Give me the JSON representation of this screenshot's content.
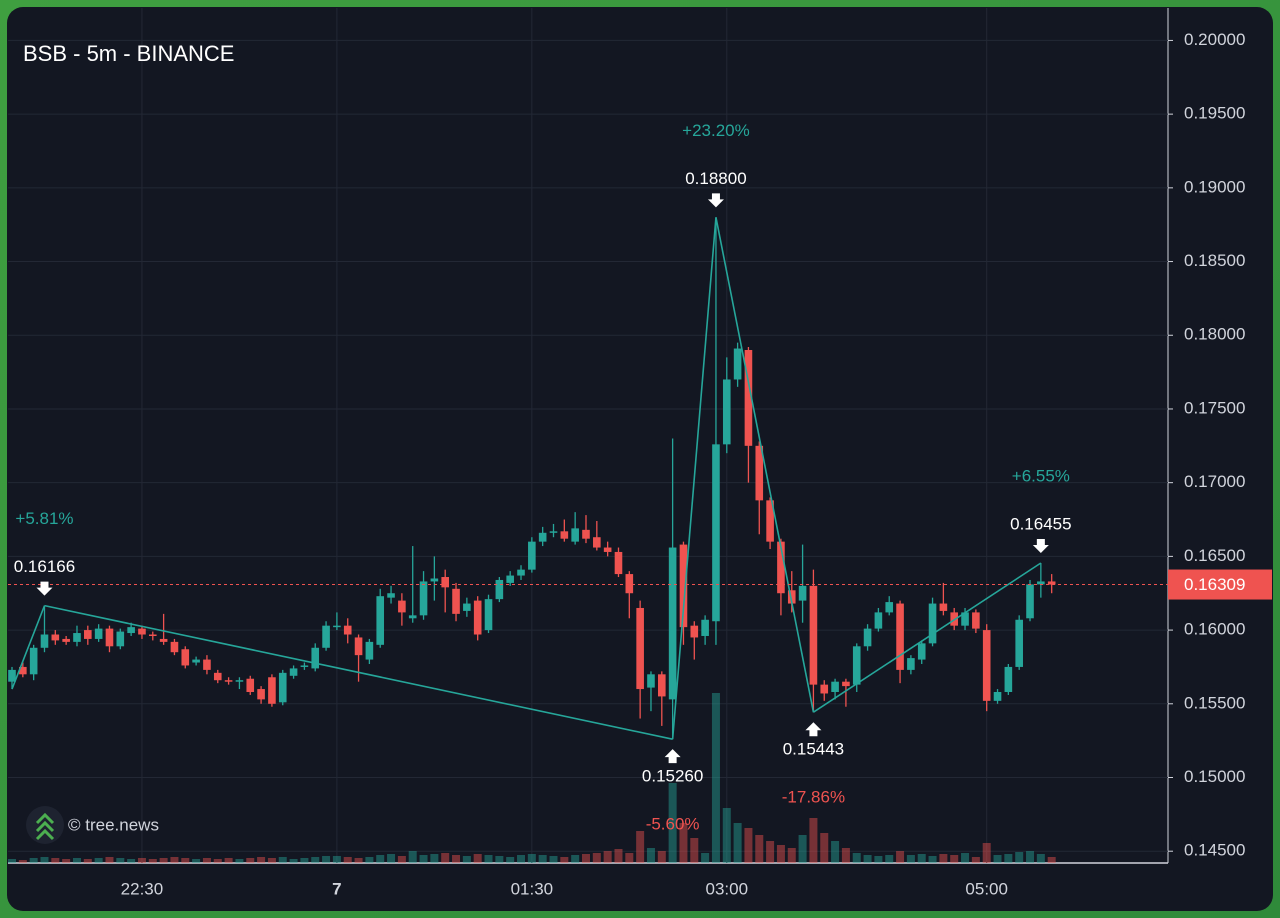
{
  "chart_data": {
    "type": "candlestick",
    "title": "BSB - 5m - BINANCE",
    "watermark": "© tree.news",
    "categories": [
      null,
      null,
      null,
      null,
      null,
      null,
      null,
      null,
      null,
      null,
      null,
      null,
      "22:30",
      null,
      null,
      null,
      null,
      null,
      null,
      null,
      null,
      null,
      null,
      null,
      null,
      null,
      null,
      null,
      null,
      null,
      "7",
      null,
      null,
      null,
      null,
      null,
      null,
      null,
      null,
      null,
      null,
      null,
      null,
      null,
      null,
      null,
      null,
      null,
      "01:30",
      null,
      null,
      null,
      null,
      null,
      null,
      null,
      null,
      null,
      null,
      null,
      null,
      null,
      null,
      null,
      null,
      null,
      "03:00",
      null,
      null,
      null,
      null,
      null,
      null,
      null,
      null,
      null,
      null,
      null,
      null,
      null,
      null,
      null,
      null,
      null,
      null,
      null,
      null,
      null,
      null,
      null,
      "05:00",
      null,
      null,
      null,
      null,
      null,
      null
    ],
    "open": [
      0.1565,
      0.1575,
      0.157,
      0.1588,
      0.1597,
      0.1594,
      0.1592,
      0.16,
      0.1594,
      0.1601,
      0.1589,
      0.1598,
      0.1601,
      0.1597,
      0.1594,
      0.1592,
      0.1587,
      0.1578,
      0.158,
      0.1571,
      0.1566,
      0.1565,
      0.1567,
      0.156,
      0.1568,
      0.1551,
      0.1569,
      0.1575,
      0.1574,
      0.1588,
      0.1602,
      0.1603,
      0.1595,
      0.158,
      0.159,
      0.1622,
      0.162,
      0.1608,
      0.161,
      0.1633,
      0.1636,
      0.1628,
      0.1613,
      0.162,
      0.16,
      0.1621,
      0.1632,
      0.1637,
      0.1641,
      0.166,
      0.1666,
      0.1667,
      0.166,
      0.1668,
      0.1663,
      0.1656,
      0.1653,
      0.1638,
      0.1615,
      0.1561,
      0.157,
      0.1553,
      0.1658,
      0.1603,
      0.1596,
      0.1606,
      0.1726,
      0.177,
      0.179,
      0.1725,
      0.1688,
      0.166,
      0.1627,
      0.162,
      0.163,
      0.1563,
      0.1558,
      0.1565,
      0.1563,
      0.1589,
      0.1601,
      0.1612,
      0.1618,
      0.1573,
      0.158,
      0.1591,
      0.1618,
      0.1612,
      0.1603,
      0.1612,
      0.16,
      0.1552,
      0.1558,
      0.1575,
      0.1608,
      0.1631,
      0.1633
    ],
    "high": [
      0.1575,
      0.1578,
      0.159,
      0.16166,
      0.16,
      0.1596,
      0.1603,
      0.1603,
      0.1604,
      0.1603,
      0.1601,
      0.1605,
      0.1603,
      0.1599,
      0.1611,
      0.1594,
      0.1589,
      0.1582,
      0.1583,
      0.1573,
      0.1568,
      0.1568,
      0.1569,
      0.1562,
      0.157,
      0.1573,
      0.1576,
      0.1578,
      0.1591,
      0.1606,
      0.1612,
      0.1608,
      0.1597,
      0.1594,
      0.1628,
      0.163,
      0.1625,
      0.1657,
      0.164,
      0.165,
      0.1641,
      0.1632,
      0.1622,
      0.1623,
      0.1624,
      0.1636,
      0.164,
      0.1644,
      0.1663,
      0.167,
      0.1672,
      0.1675,
      0.168,
      0.1678,
      0.1674,
      0.166,
      0.1656,
      0.164,
      0.162,
      0.1572,
      0.1572,
      0.173,
      0.166,
      0.1606,
      0.161,
      0.188,
      0.1785,
      0.1795,
      0.1792,
      0.1728,
      0.169,
      0.1662,
      0.164,
      0.1658,
      0.1641,
      0.1566,
      0.1567,
      0.1567,
      0.1591,
      0.1604,
      0.1615,
      0.1623,
      0.162,
      0.1583,
      0.1593,
      0.1622,
      0.1632,
      0.1615,
      0.1615,
      0.1614,
      0.1604,
      0.156,
      0.1577,
      0.161,
      0.1634,
      0.16455,
      0.1638
    ],
    "low": [
      0.156,
      0.1568,
      0.1566,
      0.1585,
      0.159,
      0.159,
      0.1589,
      0.159,
      0.1592,
      0.1585,
      0.1587,
      0.1596,
      0.1594,
      0.1593,
      0.159,
      0.1583,
      0.1574,
      0.1576,
      0.157,
      0.1564,
      0.1563,
      0.156,
      0.1556,
      0.155,
      0.1548,
      0.1549,
      0.1567,
      0.1573,
      0.1572,
      0.1586,
      0.16,
      0.1591,
      0.1565,
      0.1577,
      0.1588,
      0.1618,
      0.1603,
      0.1605,
      0.1607,
      0.162,
      0.1612,
      0.1606,
      0.1609,
      0.1593,
      0.1598,
      0.1619,
      0.163,
      0.1634,
      0.1639,
      0.1657,
      0.1663,
      0.166,
      0.1658,
      0.1659,
      0.1654,
      0.165,
      0.1636,
      0.1608,
      0.154,
      0.1545,
      0.1535,
      0.1526,
      0.159,
      0.158,
      0.159,
      0.159,
      0.172,
      0.1765,
      0.17,
      0.1665,
      0.1655,
      0.161,
      0.1612,
      0.1605,
      0.15443,
      0.1552,
      0.1553,
      0.1548,
      0.1558,
      0.1586,
      0.1599,
      0.161,
      0.1564,
      0.157,
      0.1577,
      0.1589,
      0.161,
      0.16,
      0.16,
      0.1598,
      0.1545,
      0.155,
      0.1556,
      0.1573,
      0.1606,
      0.1622,
      0.1625
    ],
    "close": [
      0.1573,
      0.157,
      0.1588,
      0.1597,
      0.1593,
      0.1592,
      0.1598,
      0.1594,
      0.1601,
      0.1589,
      0.1599,
      0.1602,
      0.1597,
      0.1596,
      0.1592,
      0.1585,
      0.1576,
      0.158,
      0.1573,
      0.1566,
      0.1565,
      0.1566,
      0.1558,
      0.1553,
      0.155,
      0.1571,
      0.1574,
      0.1576,
      0.1588,
      0.1603,
      0.1603,
      0.1597,
      0.1583,
      0.1592,
      0.1623,
      0.1625,
      0.1612,
      0.161,
      0.1633,
      0.1635,
      0.1629,
      0.1611,
      0.1618,
      0.1597,
      0.1621,
      0.1634,
      0.1637,
      0.1641,
      0.166,
      0.1666,
      0.1667,
      0.1662,
      0.1669,
      0.1662,
      0.1656,
      0.1653,
      0.1638,
      0.1625,
      0.156,
      0.157,
      0.1555,
      0.1656,
      0.1602,
      0.1595,
      0.1607,
      0.1726,
      0.177,
      0.1791,
      0.1725,
      0.1688,
      0.166,
      0.1625,
      0.1618,
      0.163,
      0.1563,
      0.1557,
      0.1565,
      0.1562,
      0.1589,
      0.1601,
      0.1612,
      0.1619,
      0.1573,
      0.1581,
      0.1591,
      0.1618,
      0.1613,
      0.1603,
      0.1612,
      0.1601,
      0.1552,
      0.1558,
      0.1575,
      0.1607,
      0.1631,
      0.1633,
      0.16309
    ],
    "volume": [
      4,
      3,
      5,
      6,
      5,
      4,
      5,
      4,
      5,
      6,
      5,
      4,
      5,
      4,
      5,
      6,
      5,
      4,
      5,
      4,
      5,
      4,
      5,
      6,
      5,
      6,
      4,
      5,
      6,
      7,
      7,
      6,
      5,
      6,
      8,
      9,
      7,
      12,
      8,
      9,
      10,
      8,
      7,
      9,
      8,
      7,
      6,
      8,
      9,
      8,
      7,
      6,
      8,
      9,
      10,
      12,
      14,
      10,
      32,
      15,
      12,
      80,
      40,
      25,
      10,
      170,
      55,
      40,
      35,
      28,
      22,
      18,
      15,
      28,
      45,
      30,
      22,
      15,
      10,
      8,
      7,
      8,
      12,
      8,
      9,
      7,
      9,
      8,
      10,
      6,
      20,
      8,
      9,
      11,
      12,
      9,
      6
    ],
    "up_color": "#26a69a",
    "down_color": "#ef5350",
    "ylim": [
      0.1442,
      0.2022
    ],
    "yticks": [
      {
        "value": 0.2,
        "label": "0.20000"
      },
      {
        "value": 0.195,
        "label": "0.19500"
      },
      {
        "value": 0.19,
        "label": "0.19000"
      },
      {
        "value": 0.185,
        "label": "0.18500"
      },
      {
        "value": 0.18,
        "label": "0.18000"
      },
      {
        "value": 0.175,
        "label": "0.17500"
      },
      {
        "value": 0.17,
        "label": "0.17000"
      },
      {
        "value": 0.165,
        "label": "0.16500"
      },
      {
        "value": 0.16,
        "label": "0.16000"
      },
      {
        "value": 0.155,
        "label": "0.15500"
      },
      {
        "value": 0.15,
        "label": "0.15000"
      },
      {
        "value": 0.145,
        "label": "0.14500"
      }
    ],
    "grid": true,
    "last_price": 0.16309,
    "pivots": [
      {
        "price": 0.16166,
        "price_label": "0.16166",
        "change": 5.81,
        "change_label": "+5.81%"
      },
      {
        "price": 0.1526,
        "price_label": "0.15260",
        "change": -5.6,
        "change_label": "-5.60%"
      },
      {
        "price": 0.188,
        "price_label": "0.18800",
        "change": 23.2,
        "change_label": "+23.20%"
      },
      {
        "price": 0.15443,
        "price_label": "0.15443",
        "change": -17.86,
        "change_label": "-17.86%"
      },
      {
        "price": 0.16455,
        "price_label": "0.16455",
        "change": 6.55,
        "change_label": "+6.55%"
      }
    ]
  }
}
